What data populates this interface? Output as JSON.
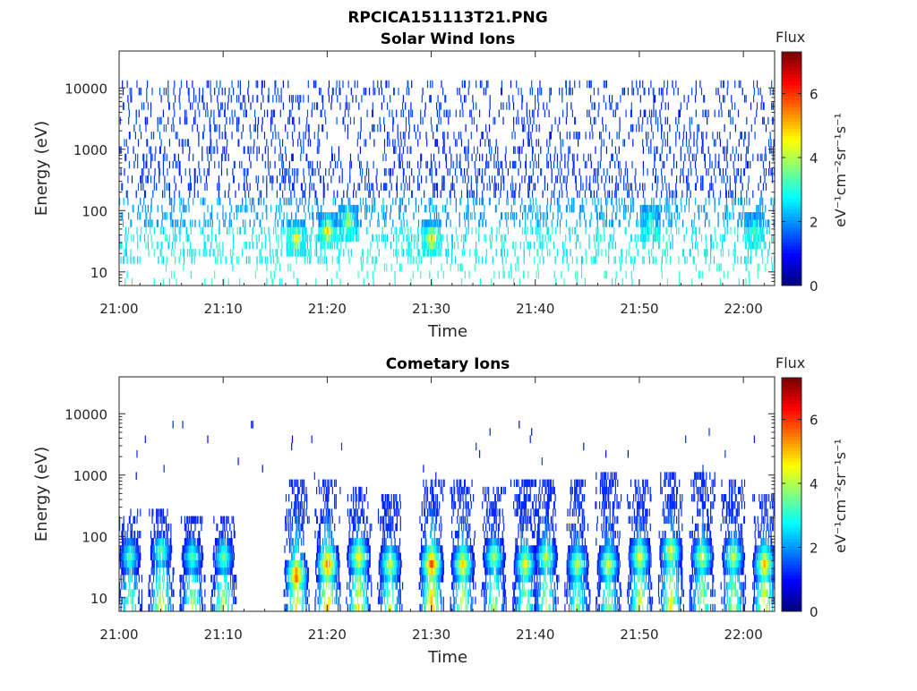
{
  "figure": {
    "title": "RPCICA151113T21.PNG"
  },
  "chart_data": [
    {
      "type": "heatmap",
      "title": "Solar Wind Ions",
      "xlabel": "Time",
      "ylabel": "Energy (eV)",
      "xlim": [
        "21:00",
        "22:03"
      ],
      "yscale": "log",
      "ylim": [
        6,
        40000
      ],
      "x_tick_labels": [
        "21:00",
        "21:10",
        "21:20",
        "21:30",
        "21:40",
        "21:50",
        "22:00"
      ],
      "y_tick_labels": [
        "10",
        "100",
        "1000",
        "10000"
      ],
      "colorbar": {
        "title": "Flux",
        "label": "eV⁻¹cm⁻²sr⁻¹s⁻¹",
        "range": [
          0,
          7.3
        ],
        "tick_labels": [
          "0",
          "2",
          "4",
          "6"
        ],
        "colormap": "jet"
      },
      "features": [
        {
          "time": "21:17",
          "energy": 30,
          "flux": 5.0
        },
        {
          "time": "21:20",
          "energy": 40,
          "flux": 5.2
        },
        {
          "time": "21:22",
          "energy": 60,
          "flux": 4.5
        },
        {
          "time": "21:30",
          "energy": 30,
          "flux": 5.3
        },
        {
          "time": "21:51",
          "energy": 60,
          "flux": 3.5
        },
        {
          "time": "22:01",
          "energy": 40,
          "flux": 3.6
        }
      ]
    },
    {
      "type": "heatmap",
      "title": "Cometary Ions",
      "xlabel": "Time",
      "ylabel": "Energy (eV)",
      "xlim": [
        "21:00",
        "22:03"
      ],
      "yscale": "log",
      "ylim": [
        6,
        40000
      ],
      "x_tick_labels": [
        "21:00",
        "21:10",
        "21:20",
        "21:30",
        "21:40",
        "21:50",
        "22:00"
      ],
      "y_tick_labels": [
        "10",
        "100",
        "1000",
        "10000"
      ],
      "colorbar": {
        "title": "Flux",
        "label": "eV⁻¹cm⁻²sr⁻¹s⁻¹",
        "range": [
          0,
          7.3
        ],
        "tick_labels": [
          "0",
          "2",
          "4",
          "6"
        ],
        "colormap": "jet"
      },
      "bursts": [
        {
          "time": "21:01",
          "peak_energy": 40,
          "peak_flux": 3.5,
          "max_energy": 200
        },
        {
          "time": "21:04",
          "peak_energy": 50,
          "peak_flux": 3.8,
          "max_energy": 200
        },
        {
          "time": "21:07",
          "peak_energy": 40,
          "peak_flux": 3.6,
          "max_energy": 150
        },
        {
          "time": "21:10",
          "peak_energy": 40,
          "peak_flux": 3.8,
          "max_energy": 150
        },
        {
          "time": "21:17",
          "peak_energy": 20,
          "peak_flux": 6.2,
          "max_energy": 600
        },
        {
          "time": "21:20",
          "peak_energy": 30,
          "peak_flux": 6.0,
          "max_energy": 500
        },
        {
          "time": "21:23",
          "peak_energy": 40,
          "peak_flux": 5.0,
          "max_energy": 400
        },
        {
          "time": "21:26",
          "peak_energy": 30,
          "peak_flux": 4.6,
          "max_energy": 300
        },
        {
          "time": "21:30",
          "peak_energy": 30,
          "peak_flux": 6.3,
          "max_energy": 600
        },
        {
          "time": "21:33",
          "peak_energy": 30,
          "peak_flux": 5.2,
          "max_energy": 500
        },
        {
          "time": "21:36",
          "peak_energy": 40,
          "peak_flux": 4.2,
          "max_energy": 400
        },
        {
          "time": "21:39",
          "peak_energy": 30,
          "peak_flux": 4.8,
          "max_energy": 500
        },
        {
          "time": "21:41",
          "peak_energy": 40,
          "peak_flux": 4.4,
          "max_energy": 600
        },
        {
          "time": "21:44",
          "peak_energy": 30,
          "peak_flux": 4.4,
          "max_energy": 500
        },
        {
          "time": "21:47",
          "peak_energy": 30,
          "peak_flux": 4.6,
          "max_energy": 800
        },
        {
          "time": "21:50",
          "peak_energy": 40,
          "peak_flux": 4.8,
          "max_energy": 500
        },
        {
          "time": "21:53",
          "peak_energy": 50,
          "peak_flux": 4.8,
          "max_energy": 700
        },
        {
          "time": "21:56",
          "peak_energy": 40,
          "peak_flux": 4.6,
          "max_energy": 700
        },
        {
          "time": "21:59",
          "peak_energy": 40,
          "peak_flux": 4.5,
          "max_energy": 500
        },
        {
          "time": "22:02",
          "peak_energy": 30,
          "peak_flux": 5.4,
          "max_energy": 300
        }
      ]
    }
  ]
}
